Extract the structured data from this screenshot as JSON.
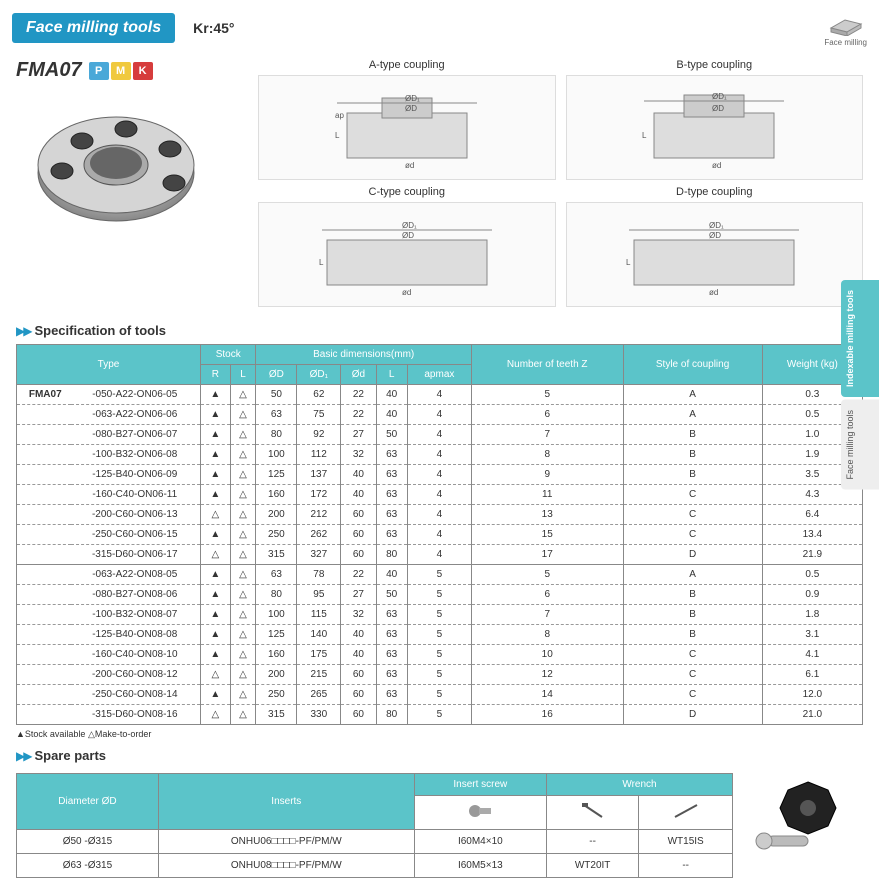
{
  "header": {
    "title": "Face milling tools",
    "kr": "Kr:45°",
    "corner_label": "Face milling"
  },
  "product": {
    "name": "FMA07",
    "badges": [
      {
        "letter": "P",
        "bg": "#4aa8d8"
      },
      {
        "letter": "M",
        "bg": "#f0c93e"
      },
      {
        "letter": "K",
        "bg": "#d63c3c"
      }
    ]
  },
  "diagrams": [
    {
      "title": "A-type coupling"
    },
    {
      "title": "B-type coupling"
    },
    {
      "title": "C-type coupling"
    },
    {
      "title": "D-type coupling"
    }
  ],
  "sections": {
    "spec": "Specification of tools",
    "spare": "Spare parts"
  },
  "spec_table": {
    "headers": {
      "type": "Type",
      "stock": "Stock",
      "basic": "Basic dimensions(mm)",
      "teeth": "Number of teeth Z",
      "style": "Style of coupling",
      "weight": "Weight (kg)",
      "R": "R",
      "L": "L",
      "OD": "ØD",
      "OD1": "ØD₁",
      "Od": "Ød",
      "Ll": "L",
      "ap": "apmax"
    },
    "family": "FMA07",
    "rows": [
      {
        "code": "-050-A22-ON06-05",
        "R": "▲",
        "Ls": "△",
        "OD": "50",
        "OD1": "62",
        "Od": "22",
        "L": "40",
        "ap": "4",
        "Z": "5",
        "style": "A",
        "wt": "0.3"
      },
      {
        "code": "-063-A22-ON06-06",
        "R": "▲",
        "Ls": "△",
        "OD": "63",
        "OD1": "75",
        "Od": "22",
        "L": "40",
        "ap": "4",
        "Z": "6",
        "style": "A",
        "wt": "0.5"
      },
      {
        "code": "-080-B27-ON06-07",
        "R": "▲",
        "Ls": "△",
        "OD": "80",
        "OD1": "92",
        "Od": "27",
        "L": "50",
        "ap": "4",
        "Z": "7",
        "style": "B",
        "wt": "1.0"
      },
      {
        "code": "-100-B32-ON06-08",
        "R": "▲",
        "Ls": "△",
        "OD": "100",
        "OD1": "112",
        "Od": "32",
        "L": "63",
        "ap": "4",
        "Z": "8",
        "style": "B",
        "wt": "1.9"
      },
      {
        "code": "-125-B40-ON06-09",
        "R": "▲",
        "Ls": "△",
        "OD": "125",
        "OD1": "137",
        "Od": "40",
        "L": "63",
        "ap": "4",
        "Z": "9",
        "style": "B",
        "wt": "3.5"
      },
      {
        "code": "-160-C40-ON06-11",
        "R": "▲",
        "Ls": "△",
        "OD": "160",
        "OD1": "172",
        "Od": "40",
        "L": "63",
        "ap": "4",
        "Z": "11",
        "style": "C",
        "wt": "4.3"
      },
      {
        "code": "-200-C60-ON06-13",
        "R": "△",
        "Ls": "△",
        "OD": "200",
        "OD1": "212",
        "Od": "60",
        "L": "63",
        "ap": "4",
        "Z": "13",
        "style": "C",
        "wt": "6.4"
      },
      {
        "code": "-250-C60-ON06-15",
        "R": "▲",
        "Ls": "△",
        "OD": "250",
        "OD1": "262",
        "Od": "60",
        "L": "63",
        "ap": "4",
        "Z": "15",
        "style": "C",
        "wt": "13.4"
      },
      {
        "code": "-315-D60-ON06-17",
        "R": "△",
        "Ls": "△",
        "OD": "315",
        "OD1": "327",
        "Od": "60",
        "L": "80",
        "ap": "4",
        "Z": "17",
        "style": "D",
        "wt": "21.9",
        "group_end": true
      },
      {
        "code": "-063-A22-ON08-05",
        "R": "▲",
        "Ls": "△",
        "OD": "63",
        "OD1": "78",
        "Od": "22",
        "L": "40",
        "ap": "5",
        "Z": "5",
        "style": "A",
        "wt": "0.5"
      },
      {
        "code": "-080-B27-ON08-06",
        "R": "▲",
        "Ls": "△",
        "OD": "80",
        "OD1": "95",
        "Od": "27",
        "L": "50",
        "ap": "5",
        "Z": "6",
        "style": "B",
        "wt": "0.9"
      },
      {
        "code": "-100-B32-ON08-07",
        "R": "▲",
        "Ls": "△",
        "OD": "100",
        "OD1": "115",
        "Od": "32",
        "L": "63",
        "ap": "5",
        "Z": "7",
        "style": "B",
        "wt": "1.8"
      },
      {
        "code": "-125-B40-ON08-08",
        "R": "▲",
        "Ls": "△",
        "OD": "125",
        "OD1": "140",
        "Od": "40",
        "L": "63",
        "ap": "5",
        "Z": "8",
        "style": "B",
        "wt": "3.1"
      },
      {
        "code": "-160-C40-ON08-10",
        "R": "▲",
        "Ls": "△",
        "OD": "160",
        "OD1": "175",
        "Od": "40",
        "L": "63",
        "ap": "5",
        "Z": "10",
        "style": "C",
        "wt": "4.1"
      },
      {
        "code": "-200-C60-ON08-12",
        "R": "△",
        "Ls": "△",
        "OD": "200",
        "OD1": "215",
        "Od": "60",
        "L": "63",
        "ap": "5",
        "Z": "12",
        "style": "C",
        "wt": "6.1"
      },
      {
        "code": "-250-C60-ON08-14",
        "R": "▲",
        "Ls": "△",
        "OD": "250",
        "OD1": "265",
        "Od": "60",
        "L": "63",
        "ap": "5",
        "Z": "14",
        "style": "C",
        "wt": "12.0"
      },
      {
        "code": "-315-D60-ON08-16",
        "R": "△",
        "Ls": "△",
        "OD": "315",
        "OD1": "330",
        "Od": "60",
        "L": "80",
        "ap": "5",
        "Z": "16",
        "style": "D",
        "wt": "21.0"
      }
    ],
    "legend": "▲Stock available    △Make-to-order"
  },
  "spare_table": {
    "headers": {
      "diameter": "Diameter ØD",
      "inserts": "Inserts",
      "screw": "Insert screw",
      "wrench": "Wrench"
    },
    "rows": [
      {
        "dia": "Ø50 -Ø315",
        "ins": "ONHU06□□□□-PF/PM/W",
        "scr": "I60M4×10",
        "w1": "--",
        "w2": "WT15IS"
      },
      {
        "dia": "Ø63 -Ø315",
        "ins": "ONHU08□□□□-PF/PM/W",
        "scr": "I60M5×13",
        "w1": "WT20IT",
        "w2": "--"
      }
    ]
  },
  "side_tabs": {
    "active": "Indexable milling tools",
    "inactive": "Face milling tools"
  },
  "colors": {
    "header_bg": "#2196c4",
    "table_header_bg": "#5bc4c9",
    "page_bg": "#ffffff"
  }
}
